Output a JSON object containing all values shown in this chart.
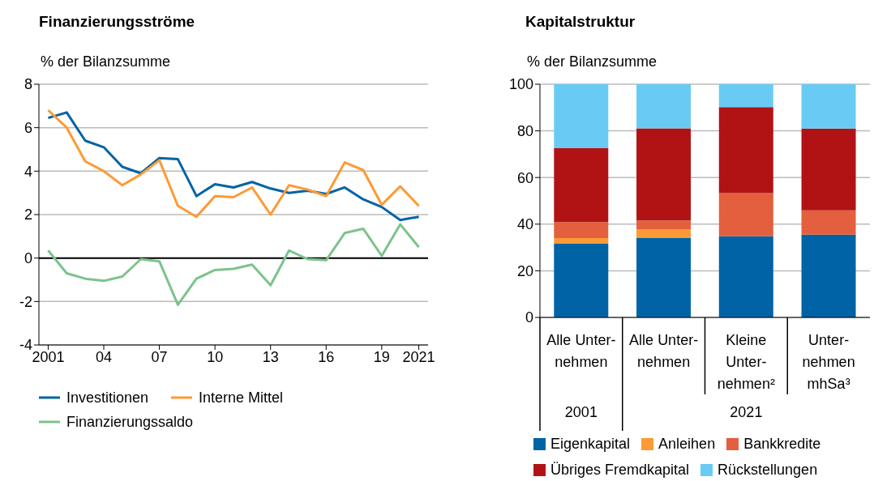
{
  "chart_data": [
    {
      "type": "line",
      "title": "Finanzierungsströme",
      "ylabel": "% der Bilanzsumme",
      "x": [
        2001,
        2002,
        2003,
        2004,
        2005,
        2006,
        2007,
        2008,
        2009,
        2010,
        2011,
        2012,
        2013,
        2014,
        2015,
        2016,
        2017,
        2018,
        2019,
        2020,
        2021
      ],
      "series": [
        {
          "name": "Investitionen",
          "color": "#0063a5",
          "values": [
            6.45,
            6.7,
            5.4,
            5.1,
            4.2,
            3.9,
            4.6,
            4.55,
            2.85,
            3.4,
            3.25,
            3.5,
            3.2,
            3.0,
            3.1,
            2.95,
            3.25,
            2.7,
            2.35,
            1.75,
            1.9
          ]
        },
        {
          "name": "Interne Mittel",
          "color": "#fd9a35",
          "values": [
            6.8,
            6.0,
            4.45,
            4.0,
            3.35,
            3.85,
            4.5,
            2.4,
            1.9,
            2.85,
            2.8,
            3.25,
            2.0,
            3.35,
            3.15,
            2.85,
            4.4,
            4.05,
            2.45,
            3.3,
            2.4
          ]
        },
        {
          "name": "Finanzierungssaldo",
          "color": "#7cc38c",
          "values": [
            0.35,
            -0.7,
            -0.95,
            -1.05,
            -0.85,
            -0.05,
            -0.15,
            -2.15,
            -0.95,
            -0.55,
            -0.5,
            -0.3,
            -1.25,
            0.35,
            -0.05,
            -0.1,
            1.15,
            1.35,
            0.1,
            1.55,
            0.5
          ]
        }
      ],
      "xlim": [
        2000.5,
        2021.5
      ],
      "xticks": [
        {
          "value": 2001,
          "label": "2001"
        },
        {
          "value": 2004,
          "label": "04"
        },
        {
          "value": 2007,
          "label": "07"
        },
        {
          "value": 2010,
          "label": "10"
        },
        {
          "value": 2013,
          "label": "13"
        },
        {
          "value": 2016,
          "label": "16"
        },
        {
          "value": 2019,
          "label": "19"
        },
        {
          "value": 2021,
          "label": "2021"
        }
      ],
      "ylim": [
        -4,
        8
      ],
      "yticks": [
        -4,
        -2,
        0,
        2,
        4,
        6,
        8
      ],
      "ref_lines": [
        {
          "axis": "y",
          "value": 0,
          "color": "#000000"
        }
      ],
      "grid": "y",
      "legend": "bottom",
      "marker": "none",
      "line_style": "solid"
    },
    {
      "type": "bar",
      "stacked": true,
      "title": "Kapitalstruktur",
      "ylabel": "% der Bilanzsumme",
      "categories": [
        "Alle Unter-\nnehmen",
        "Alle Unter-\nnehmen",
        "Kleine\nUnter-\nnehmen²",
        "Unter-\nnehmen\nmhSa³"
      ],
      "series": [
        {
          "name": "Eigenkapital",
          "color": "#0063a5",
          "values": [
            31.6,
            34.2,
            34.8,
            35.5
          ]
        },
        {
          "name": "Anleihen",
          "color": "#fd9a35",
          "values": [
            2.4,
            3.5,
            0,
            0
          ]
        },
        {
          "name": "Bankkredite",
          "color": "#e45f3d",
          "values": [
            6.9,
            3.9,
            18.5,
            10.4
          ]
        },
        {
          "name": "Übriges Fremdkapital",
          "color": "#b11315",
          "values": [
            31.7,
            39.5,
            36.9,
            35.1
          ]
        },
        {
          "name": "Rückstellungen",
          "color": "#69cbf3",
          "values": [
            27.4,
            18.9,
            9.8,
            19.0
          ]
        }
      ],
      "ylim": [
        0,
        100
      ],
      "yticks": [
        0,
        20,
        40,
        60,
        80,
        100
      ],
      "annotations": [
        "2001",
        "2021"
      ],
      "grid": "y",
      "legend": "bottom"
    }
  ]
}
